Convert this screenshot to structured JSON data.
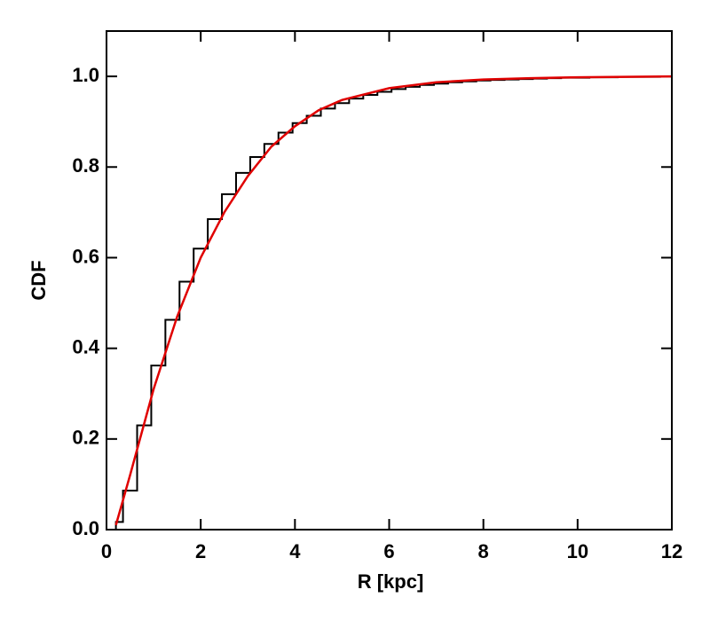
{
  "chart_data": {
    "type": "histogram",
    "xlabel": "R [kpc]",
    "ylabel": "CDF",
    "bins": [
      0.2,
      0.35,
      0.65,
      0.95,
      1.25,
      1.55,
      1.85,
      2.15,
      2.45,
      2.75,
      3.05,
      3.35,
      3.65,
      3.95,
      4.25,
      4.55,
      4.85,
      5.15,
      5.45,
      5.75,
      6.05,
      6.35,
      6.65,
      6.95,
      7.25,
      7.55,
      7.85,
      8.15,
      8.45,
      8.75,
      9.05,
      9.35,
      9.65,
      9.95,
      10.25,
      10.55,
      10.85,
      11.15,
      11.45,
      11.75,
      12.0
    ],
    "values": [
      0.017,
      0.086,
      0.23,
      0.362,
      0.463,
      0.547,
      0.62,
      0.685,
      0.74,
      0.787,
      0.822,
      0.851,
      0.876,
      0.897,
      0.913,
      0.929,
      0.941,
      0.951,
      0.959,
      0.966,
      0.972,
      0.977,
      0.981,
      0.984,
      0.987,
      0.989,
      0.991,
      0.992,
      0.993,
      0.994,
      0.995,
      0.996,
      0.997,
      0.997,
      0.998,
      0.998,
      0.999,
      0.999,
      0.999,
      1.0
    ],
    "color": "#000000",
    "series": [
      {
        "type": "line",
        "color": "#e00000",
        "x": [
          0.2,
          0.5,
          1,
          1.5,
          2,
          2.5,
          3,
          3.5,
          4,
          4.5,
          5,
          6,
          7,
          8,
          9,
          10,
          11,
          12
        ],
        "values": [
          0.01,
          0.12,
          0.31,
          0.47,
          0.6,
          0.7,
          0.78,
          0.845,
          0.89,
          0.925,
          0.948,
          0.974,
          0.987,
          0.993,
          0.996,
          0.998,
          0.999,
          1.0
        ]
      }
    ],
    "xlim": [
      0,
      12
    ],
    "xticks": [
      0,
      2,
      4,
      6,
      8,
      10,
      12
    ],
    "ylim": [
      0,
      1.1
    ],
    "yticks": [
      {
        "value": 0,
        "label": "0.0"
      },
      {
        "value": 0.2,
        "label": "0.2"
      },
      {
        "value": 0.4,
        "label": "0.4"
      },
      {
        "value": 0.6,
        "label": "0.6"
      },
      {
        "value": 0.8,
        "label": "0.8"
      },
      {
        "value": 1.0,
        "label": "1.0"
      }
    ]
  }
}
